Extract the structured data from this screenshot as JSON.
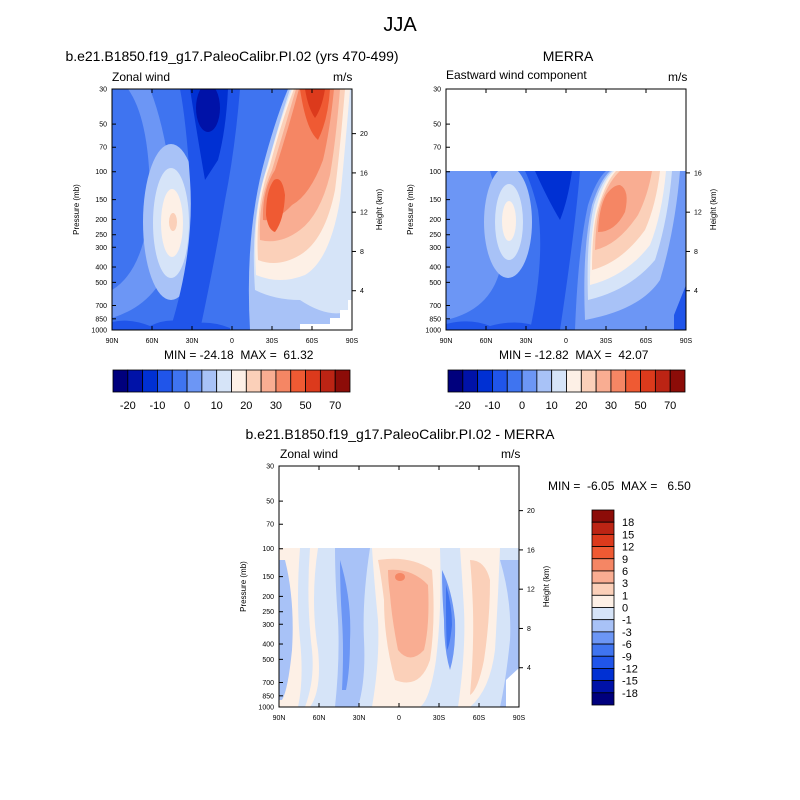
{
  "page": {
    "title": "JJA"
  },
  "colors": {
    "abs_scale": [
      "#00007d",
      "#0012a8",
      "#0030d3",
      "#2055ea",
      "#3f74f0",
      "#6c96f5",
      "#a8c2f7",
      "#d6e4f8",
      "#fdf0e6",
      "#fbd0b9",
      "#f9ad92",
      "#f58664",
      "#ef5a33",
      "#dc3a1c",
      "#bc2414",
      "#8c0c08"
    ],
    "diff_scale": [
      "#00007d",
      "#0012a8",
      "#0030d3",
      "#2055ea",
      "#3f74f0",
      "#6c96f5",
      "#a8c2f7",
      "#d6e4f8",
      "#fdf0e6",
      "#fbd0b9",
      "#f9ad92",
      "#f58664",
      "#ef5a33",
      "#dc3a1c",
      "#bc2414",
      "#8c0c08"
    ]
  },
  "chart_data": [
    {
      "type": "heatmap",
      "title": "b.e21.B1850.f19_g17.PaleoCalibr.PI.02 (yrs 470-499)",
      "left_label": "Zonal wind",
      "right_label": "m/s",
      "ylabel": "Pressure (mb)",
      "y2label": "Height (km)",
      "x_ticks": [
        "90N",
        "60N",
        "30N",
        "0",
        "30S",
        "60S",
        "90S"
      ],
      "y_ticks": [
        "30",
        "50",
        "70",
        "100",
        "150",
        "200",
        "250",
        "300",
        "400",
        "500",
        "700",
        "850",
        "1000"
      ],
      "y2_ticks": [
        "20",
        "16",
        "12",
        "8",
        "4"
      ],
      "data_top_pressure": 30,
      "min": "-24.18",
      "max": "61.32",
      "min_label": "MIN = ",
      "max_label": "MAX = ",
      "colorbar_labels": [
        "-20",
        "-10",
        "0",
        "10",
        "20",
        "30",
        "50",
        "70"
      ]
    },
    {
      "type": "heatmap",
      "title": "MERRA",
      "left_label": "Eastward wind component",
      "right_label": "m/s",
      "ylabel": "Pressure (mb)",
      "y2label": "Height (km)",
      "x_ticks": [
        "90N",
        "60N",
        "30N",
        "0",
        "30S",
        "60S",
        "90S"
      ],
      "y_ticks": [
        "30",
        "50",
        "70",
        "100",
        "150",
        "200",
        "250",
        "300",
        "400",
        "500",
        "700",
        "850",
        "1000"
      ],
      "y2_ticks": [
        "16",
        "12",
        "8",
        "4"
      ],
      "data_top_pressure": 100,
      "min": "-12.82",
      "max": "42.07",
      "min_label": "MIN = ",
      "max_label": "MAX = ",
      "colorbar_labels": [
        "-20",
        "-10",
        "0",
        "10",
        "20",
        "30",
        "50",
        "70"
      ]
    },
    {
      "type": "heatmap",
      "title": "b.e21.B1850.f19_g17.PaleoCalibr.PI.02 - MERRA",
      "left_label": "Zonal wind",
      "right_label": "m/s",
      "ylabel": "Pressure (mb)",
      "y2label": "Height (km)",
      "x_ticks": [
        "90N",
        "60N",
        "30N",
        "0",
        "30S",
        "60S",
        "90S"
      ],
      "y_ticks": [
        "30",
        "50",
        "70",
        "100",
        "150",
        "200",
        "250",
        "300",
        "400",
        "500",
        "700",
        "850",
        "1000"
      ],
      "y2_ticks": [
        "20",
        "16",
        "12",
        "8",
        "4"
      ],
      "data_top_pressure": 100,
      "min": "-6.05",
      "max": "6.50",
      "min_label": "MIN = ",
      "max_label": "MAX = ",
      "colorbar_labels": [
        "18",
        "15",
        "12",
        "9",
        "6",
        "3",
        "1",
        "0",
        "-1",
        "-3",
        "-6",
        "-9",
        "-12",
        "-15",
        "-18"
      ]
    }
  ]
}
